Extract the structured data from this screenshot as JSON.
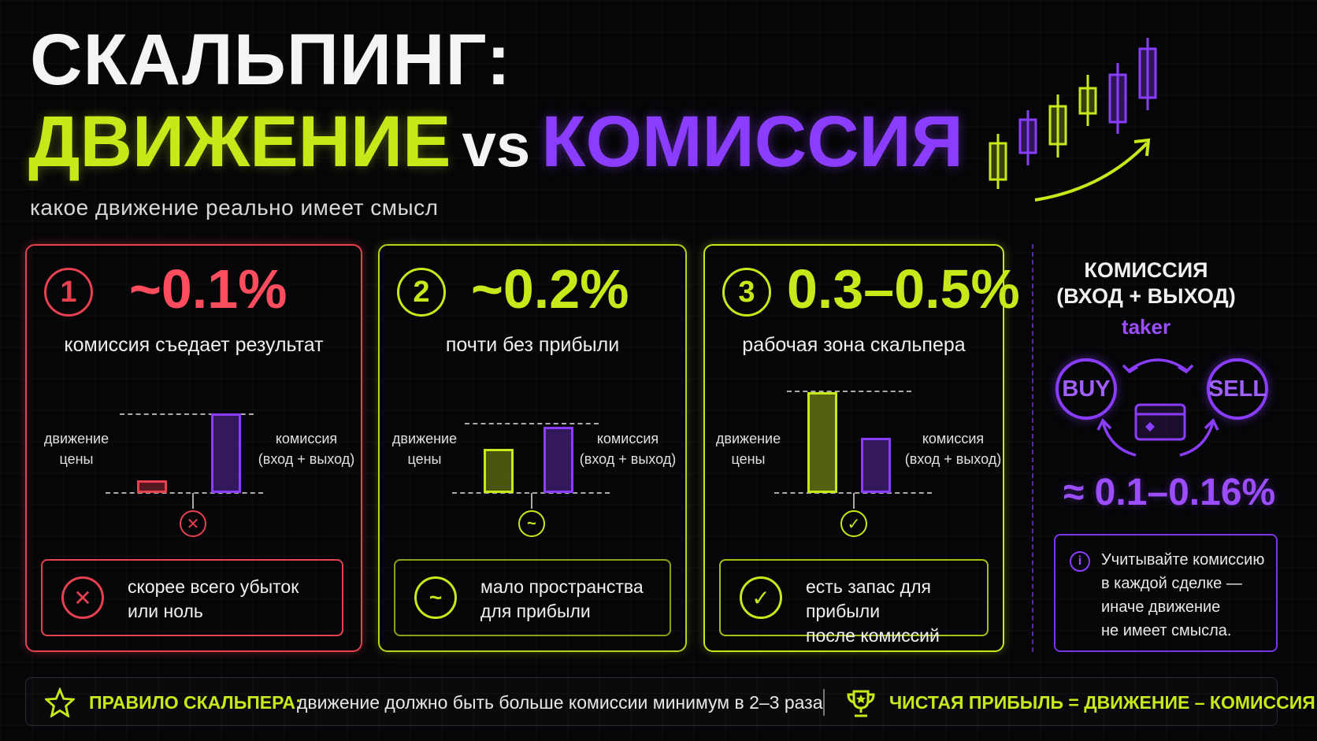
{
  "header": {
    "title_line1": "СКАЛЬПИНГ:",
    "title_left": "ДВИЖЕНИЕ",
    "title_vs": "vs",
    "title_right": "КОМИССИЯ",
    "subtitle": "какое движение реально имеет смысл"
  },
  "cards": [
    {
      "number": "1",
      "percent": "~0.1%",
      "caption": "комиссия съедает результат",
      "left_label": "движение\nцены",
      "right_label": "комиссия\n(вход + выход)",
      "verdict": "скорее всего убыток\nили ноль",
      "price_move_pct": 0.1,
      "color": "#e8404f"
    },
    {
      "number": "2",
      "percent": "~0.2%",
      "caption": "почти без прибыли",
      "left_label": "движение\nцены",
      "right_label": "комиссия\n(вход + выход)",
      "verdict": "мало пространства\nдля прибыли",
      "price_move_pct": 0.2,
      "color": "#c8e81a"
    },
    {
      "number": "3",
      "percent": "0.3–0.5%",
      "caption": "рабочая зона скальпера",
      "left_label": "движение\nцены",
      "right_label": "комиссия\n(вход + выход)",
      "verdict": "есть запас для прибыли\nпосле комиссий",
      "price_move_pct_range": [
        0.3,
        0.5
      ],
      "color": "#c8e81a"
    }
  ],
  "fee_panel": {
    "title": "КОМИССИЯ\n(ВХОД + ВЫХОД)",
    "type": "taker",
    "buy": "BUY",
    "sell": "SELL",
    "value": "≈ 0.1–0.16%",
    "note": "Учитывайте комиссию\nв каждой сделке —\nиначе движение\nне имеет смысла."
  },
  "footer": {
    "rule_label": "ПРАВИЛО СКАЛЬПЕРА:",
    "rule_text": "движение должно быть больше комиссии минимум в 2–3 раза",
    "formula": "ЧИСТАЯ ПРИБЫЛЬ = ДВИЖЕНИЕ – КОМИССИЯ"
  },
  "colors": {
    "lime": "#c8e81a",
    "purple": "#8a3dff",
    "red": "#e8404f",
    "background": "#060608"
  },
  "icons": {
    "candles": "candlestick-chart-icon",
    "arrow": "uptrend-arrow-icon",
    "card": "credit-card-icon",
    "star": "star-icon",
    "cup": "trophy-icon",
    "info": "info-icon"
  }
}
